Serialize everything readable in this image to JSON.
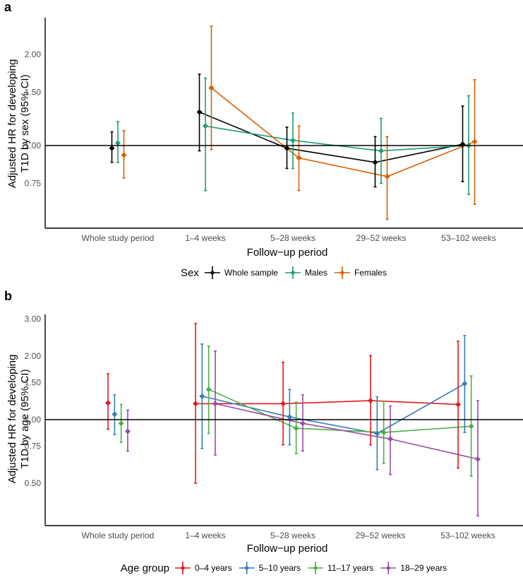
{
  "chart_data": [
    {
      "panel": "a",
      "type": "line",
      "subtype": "point-range with connecting lines (dodged)",
      "xlabel": "Follow−up period",
      "ylabel_lines": [
        "Adjusted HR for developing",
        "T1D by sex (95% CI)"
      ],
      "yscale": "log",
      "ylim": [
        0.5,
        2.65
      ],
      "yticks": [
        0.75,
        1.0,
        1.5,
        2.0
      ],
      "ytick_labels": [
        "0.75",
        "1.00",
        "1.50",
        "2.00"
      ],
      "reference_line": 1.0,
      "categories": [
        "Whole study period",
        "1–4 weeks",
        "5–28 weeks",
        "29–52 weeks",
        "53–102 weeks"
      ],
      "connected_from_index": 1,
      "legend": {
        "title": "Sex",
        "position": "bottom"
      },
      "series": [
        {
          "name": "Whole sample",
          "color": "#000000",
          "values": [
            0.98,
            1.29,
            0.98,
            0.88,
            1.01
          ],
          "lower": [
            0.88,
            0.96,
            0.84,
            0.73,
            0.76
          ],
          "upper": [
            1.11,
            1.72,
            1.15,
            1.07,
            1.35
          ]
        },
        {
          "name": "Males",
          "color": "#1b9e77",
          "values": [
            1.02,
            1.16,
            1.04,
            0.96,
            1.0
          ],
          "lower": [
            0.88,
            0.71,
            0.84,
            0.75,
            0.69
          ],
          "upper": [
            1.2,
            1.67,
            1.28,
            1.23,
            1.46
          ]
        },
        {
          "name": "Females",
          "color": "#d95f02",
          "values": [
            0.93,
            1.55,
            0.91,
            0.79,
            1.03
          ],
          "lower": [
            0.78,
            0.97,
            0.71,
            0.57,
            0.64
          ],
          "upper": [
            1.12,
            2.48,
            1.16,
            1.07,
            1.65
          ]
        }
      ]
    },
    {
      "panel": "b",
      "type": "line",
      "subtype": "point-range with connecting lines (dodged)",
      "xlabel": "Follow−up period",
      "ylabel_lines": [
        "Adjusted HR for developing",
        "T1D by age (95% CI)"
      ],
      "yscale": "log",
      "ylim": [
        0.33,
        3.25
      ],
      "yticks": [
        0.5,
        0.75,
        1.0,
        1.5,
        2.0,
        3.0
      ],
      "ytick_labels": [
        "0.50",
        "0.75",
        "1.00",
        "1.50",
        "2.00",
        "3.00"
      ],
      "reference_line": 1.0,
      "categories": [
        "Whole study period",
        "1–4 weeks",
        "5–28 weeks",
        "29–52 weeks",
        "53–102 weeks"
      ],
      "connected_from_index": 1,
      "legend": {
        "title": "Age group",
        "position": "bottom"
      },
      "series": [
        {
          "name": "0–4 years",
          "color": "#e41a1c",
          "values": [
            1.2,
            1.19,
            1.19,
            1.23,
            1.18
          ],
          "lower": [
            0.9,
            0.5,
            0.76,
            0.76,
            0.59
          ],
          "upper": [
            1.65,
            2.85,
            1.87,
            2.01,
            2.35
          ]
        },
        {
          "name": "5–10 years",
          "color": "#377eb8",
          "values": [
            1.06,
            1.29,
            1.03,
            0.86,
            1.48
          ],
          "lower": [
            0.85,
            0.73,
            0.76,
            0.58,
            0.87
          ],
          "upper": [
            1.31,
            2.28,
            1.39,
            1.28,
            2.5
          ]
        },
        {
          "name": "11–17 years",
          "color": "#4daf4a",
          "values": [
            0.96,
            1.39,
            0.91,
            0.87,
            0.93
          ],
          "lower": [
            0.78,
            0.86,
            0.69,
            0.62,
            0.54
          ],
          "upper": [
            1.18,
            2.23,
            1.21,
            1.22,
            1.61
          ]
        },
        {
          "name": "18–29 years",
          "color": "#984ea3",
          "values": [
            0.88,
            1.19,
            0.96,
            0.81,
            0.65
          ],
          "lower": [
            0.71,
            0.68,
            0.71,
            0.55,
            0.35
          ],
          "upper": [
            1.11,
            2.11,
            1.31,
            1.16,
            1.23
          ]
        }
      ]
    }
  ]
}
